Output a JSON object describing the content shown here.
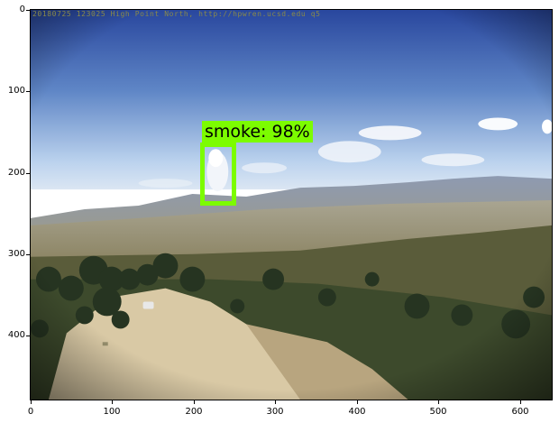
{
  "image": {
    "overlay_text": "20180725 123025  High  Point  North,  http://hpwren.ucsd.edu  q5",
    "detection": {
      "label": "smoke: 98%",
      "box_color": "#7cfc00"
    }
  },
  "axes": {
    "x_ticks": [
      "0",
      "100",
      "200",
      "300",
      "400",
      "500",
      "600"
    ],
    "y_ticks": [
      "0",
      "100",
      "200",
      "300",
      "400"
    ]
  },
  "colors": {
    "sky_top": "#2e4fa6",
    "sky_horizon": "#cfe0f4",
    "mountains": "#8a97ad",
    "vegetation": "#3c4a2e",
    "dirt": "#d8c8a6"
  }
}
